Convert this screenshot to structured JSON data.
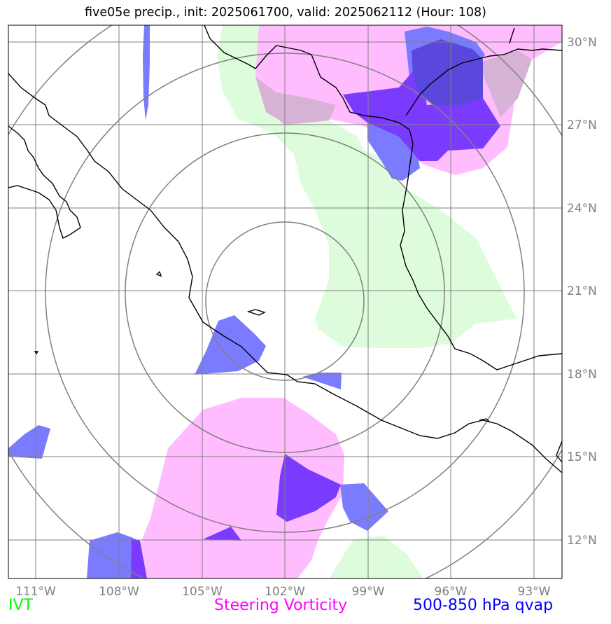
{
  "title": "five05e precip., init: 2025061700, valid: 2025062112 (Hour: 108)",
  "lat_labels": [
    "30°N",
    "27°N",
    "24°N",
    "21°N",
    "18°N",
    "15°N",
    "12°N"
  ],
  "lon_labels": [
    "111°W",
    "108°W",
    "105°W",
    "102°W",
    "99°W",
    "96°W",
    "93°W"
  ],
  "legend": {
    "ivt": "IVT",
    "steering_vorticity": "Steering Vorticity",
    "qvap": "500-850 hPa qvap"
  },
  "colors": {
    "ivt": "#00ff00",
    "steering_vorticity": "#ff00ff",
    "qvap": "#0000ff",
    "ivt_fill": "#dcfcdc",
    "vorticity_fill": "#ffbcff",
    "qvap_fill": "#7b7bff",
    "overlap_fill": "#7b3bff",
    "grid": "#808080",
    "coastline": "#000000"
  }
}
